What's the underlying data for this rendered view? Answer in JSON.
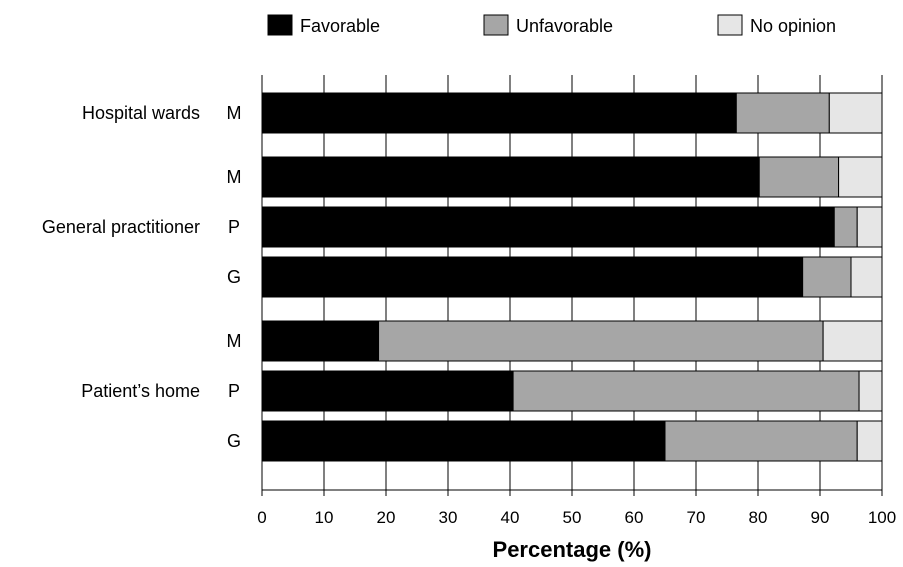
{
  "chart_data": {
    "type": "bar",
    "orientation": "horizontal",
    "stacked": true,
    "title": "",
    "xlabel": "Percentage (%)",
    "ylabel": "",
    "xlim": [
      0,
      100
    ],
    "xticks": [
      0,
      10,
      20,
      30,
      40,
      50,
      60,
      70,
      80,
      90,
      100
    ],
    "grid": "vertical",
    "legend_position": "top",
    "colors": {
      "favorable": "#000000",
      "unfavorable": "#a6a6a6",
      "no_opinion": "#e6e6e6"
    },
    "legend": [
      {
        "key": "favorable",
        "label": "Favorable"
      },
      {
        "key": "unfavorable",
        "label": "Unfavorable"
      },
      {
        "key": "no_opinion",
        "label": "No opinion"
      }
    ],
    "groups": [
      {
        "label": "Hospital wards",
        "rows": [
          {
            "label": "M",
            "favorable": 76.5,
            "unfavorable": 15.0,
            "no_opinion": 8.5
          }
        ]
      },
      {
        "label": "General practitioner",
        "rows": [
          {
            "label": "M",
            "favorable": 80.2,
            "unfavorable": 12.8,
            "no_opinion": 7.0
          },
          {
            "label": "P",
            "favorable": 92.3,
            "unfavorable": 3.7,
            "no_opinion": 4.0
          },
          {
            "label": "G",
            "favorable": 87.2,
            "unfavorable": 7.8,
            "no_opinion": 5.0
          }
        ]
      },
      {
        "label": "Patient’s home",
        "rows": [
          {
            "label": "M",
            "favorable": 18.8,
            "unfavorable": 71.7,
            "no_opinion": 9.5
          },
          {
            "label": "P",
            "favorable": 40.5,
            "unfavorable": 55.8,
            "no_opinion": 3.7
          },
          {
            "label": "G",
            "favorable": 65.0,
            "unfavorable": 31.0,
            "no_opinion": 4.0
          }
        ]
      }
    ]
  }
}
